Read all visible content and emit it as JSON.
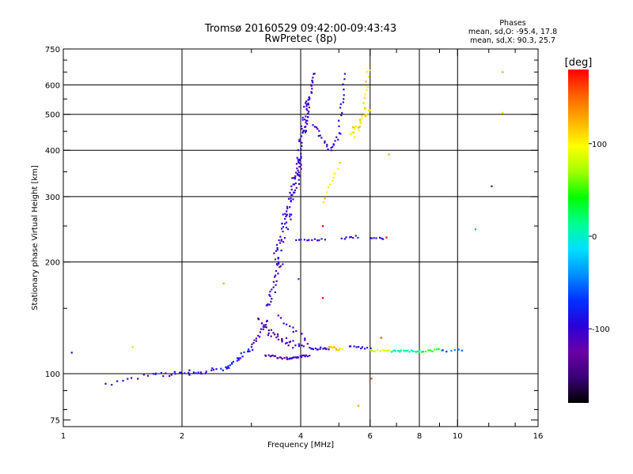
{
  "chart_data": {
    "type": "scatter",
    "title": "Tromsø 20160529 09:42:00-09:43:43",
    "subtitle": "RwPretec (8p)",
    "xlabel": "Frequency [MHz]",
    "ylabel": "Stationary phase Virtual Height [km]",
    "x_scale": "log",
    "y_scale": "log",
    "xlim": [
      1,
      16
    ],
    "ylim": [
      72,
      750
    ],
    "x_ticks": [
      1,
      2,
      4,
      6,
      8,
      10,
      16
    ],
    "x_tick_labels": [
      "1",
      "2",
      "4",
      "6",
      "8",
      "10",
      "16"
    ],
    "x_minor_ticks": [
      3,
      5,
      7,
      9,
      12,
      14
    ],
    "y_ticks": [
      75,
      100,
      200,
      300,
      400,
      500,
      600,
      750
    ],
    "y_tick_labels": [
      "75",
      "100",
      "200",
      "300",
      "400",
      "500",
      "600",
      "750"
    ],
    "y_minor_ticks": [
      80,
      90,
      150,
      250,
      350,
      450,
      550,
      650,
      700
    ],
    "grid_x": [
      2,
      4,
      6,
      8,
      10
    ],
    "grid_y": [
      100,
      200,
      300,
      400,
      500,
      600
    ],
    "grid": true,
    "legend": {
      "title": "Phases",
      "lines": [
        "mean, sd,O: -95.4, 17.8",
        "mean, sd,X:  90.3, 25.7"
      ]
    },
    "colorbar": {
      "label": "[deg]",
      "min": -180,
      "max": 180,
      "ticks": [
        100,
        0,
        -100
      ],
      "tick_labels": [
        "100",
        "0",
        "-100"
      ],
      "colormap": [
        "#000000",
        "#3a0078",
        "#6a00a8",
        "#2a00d8",
        "#0030ff",
        "#0090ff",
        "#00e0ff",
        "#00ff90",
        "#00ff00",
        "#a0ff00",
        "#ffff00",
        "#ffb000",
        "#ff6000",
        "#ff0000"
      ]
    },
    "series": [
      {
        "traces": [
          {
            "x0": 1.28,
            "x1": 1.7,
            "h0": 93,
            "h1": 100,
            "n": 10,
            "jit": 0.015,
            "phase": -100
          },
          {
            "x0": 1.7,
            "x1": 2.1,
            "h0": 99,
            "h1": 101,
            "n": 14,
            "jit": 0.018,
            "phase": -95
          },
          {
            "x0": 2.1,
            "x1": 2.6,
            "h0": 100,
            "h1": 104,
            "n": 16,
            "jit": 0.02,
            "phase": -90
          },
          {
            "x0": 2.6,
            "x1": 3.0,
            "h0": 104,
            "h1": 117,
            "n": 20,
            "jit": 0.02,
            "phase": -85
          },
          {
            "x0": 3.0,
            "x1": 3.3,
            "h0": 118,
            "h1": 140,
            "n": 16,
            "jit": 0.02,
            "phase": -110
          },
          {
            "x0": 3.3,
            "x1": 3.55,
            "h0": 150,
            "h1": 200,
            "n": 24,
            "jit": 0.03,
            "phase": -100
          },
          {
            "x0": 3.45,
            "x1": 3.75,
            "h0": 200,
            "h1": 270,
            "n": 32,
            "jit": 0.04,
            "phase": -100
          },
          {
            "x0": 3.65,
            "x1": 4.0,
            "h0": 260,
            "h1": 380,
            "n": 38,
            "jit": 0.04,
            "phase": -100
          },
          {
            "x0": 3.9,
            "x1": 4.15,
            "h0": 320,
            "h1": 560,
            "n": 48,
            "jit": 0.035,
            "phase": -100
          },
          {
            "x0": 4.1,
            "x1": 4.3,
            "h0": 450,
            "h1": 650,
            "n": 28,
            "jit": 0.02,
            "phase": -105
          },
          {
            "x0": 3.25,
            "x1": 3.7,
            "h0": 112,
            "h1": 110,
            "n": 16,
            "jit": 0.01,
            "phase": -120
          },
          {
            "x0": 3.7,
            "x1": 4.2,
            "h0": 110,
            "h1": 112,
            "n": 20,
            "jit": 0.008,
            "phase": -110
          },
          {
            "x0": 3.1,
            "x1": 3.8,
            "h0": 140,
            "h1": 118,
            "n": 18,
            "jit": 0.02,
            "phase": -130
          },
          {
            "x0": 3.3,
            "x1": 4.1,
            "h0": 128,
            "h1": 118,
            "n": 16,
            "jit": 0.02,
            "phase": -110
          },
          {
            "x0": 3.5,
            "x1": 4.2,
            "h0": 142,
            "h1": 122,
            "n": 12,
            "jit": 0.02,
            "phase": -105
          },
          {
            "x0": 4.2,
            "x1": 4.7,
            "h0": 117,
            "h1": 117,
            "n": 14,
            "jit": 0.01,
            "phase": -100
          },
          {
            "x0": 4.3,
            "x1": 4.75,
            "h0": 470,
            "h1": 400,
            "n": 14,
            "jit": 0.015,
            "phase": -95
          },
          {
            "x0": 4.7,
            "x1": 5.05,
            "h0": 400,
            "h1": 450,
            "n": 10,
            "jit": 0.02,
            "phase": -95
          },
          {
            "x0": 5.0,
            "x1": 5.2,
            "h0": 470,
            "h1": 640,
            "n": 14,
            "jit": 0.02,
            "phase": -100
          },
          {
            "x0": 3.9,
            "x1": 4.6,
            "h0": 230,
            "h1": 230,
            "n": 12,
            "jit": 0.008,
            "phase": -95
          },
          {
            "x0": 5.1,
            "x1": 5.6,
            "h0": 232,
            "h1": 234,
            "n": 8,
            "jit": 0.01,
            "phase": -90
          },
          {
            "x0": 6.0,
            "x1": 6.5,
            "h0": 233,
            "h1": 232,
            "n": 7,
            "jit": 0.01,
            "phase": -100
          },
          {
            "x0": 5.3,
            "x1": 6.0,
            "h0": 118,
            "h1": 117,
            "n": 10,
            "jit": 0.01,
            "phase": -100
          },
          {
            "x0": 4.6,
            "x1": 5.0,
            "h0": 290,
            "h1": 370,
            "n": 10,
            "jit": 0.02,
            "phase": 105
          },
          {
            "x0": 4.7,
            "x1": 5.1,
            "h0": 118,
            "h1": 116,
            "n": 14,
            "jit": 0.012,
            "phase": 110
          },
          {
            "x0": 5.4,
            "x1": 5.95,
            "h0": 440,
            "h1": 520,
            "n": 26,
            "jit": 0.03,
            "phase": 110
          },
          {
            "x0": 5.8,
            "x1": 5.95,
            "h0": 520,
            "h1": 660,
            "n": 10,
            "jit": 0.02,
            "phase": 110
          },
          {
            "x0": 6.0,
            "x1": 6.8,
            "h0": 115,
            "h1": 115,
            "n": 12,
            "jit": 0.01,
            "phase": 80
          },
          {
            "x0": 6.8,
            "x1": 8.0,
            "h0": 115,
            "h1": 115,
            "n": 20,
            "jit": 0.01,
            "phase": 0
          },
          {
            "x0": 8.0,
            "x1": 9.2,
            "h0": 115,
            "h1": 116,
            "n": 12,
            "jit": 0.01,
            "phase": 40
          },
          {
            "x0": 9.2,
            "x1": 10.3,
            "h0": 115,
            "h1": 116,
            "n": 6,
            "jit": 0.01,
            "phase": -60
          }
        ],
        "points": [
          {
            "x": 1.05,
            "y": 114,
            "phase": -100
          },
          {
            "x": 1.5,
            "y": 118,
            "phase": 110
          },
          {
            "x": 2.55,
            "y": 175,
            "phase": 130
          },
          {
            "x": 3.95,
            "y": 180,
            "phase": -60
          },
          {
            "x": 4.55,
            "y": 250,
            "phase": 180
          },
          {
            "x": 4.55,
            "y": 160,
            "phase": 180
          },
          {
            "x": 5.6,
            "y": 82,
            "phase": 130
          },
          {
            "x": 6.05,
            "y": 97,
            "phase": 160
          },
          {
            "x": 6.4,
            "y": 125,
            "phase": 160
          },
          {
            "x": 6.6,
            "y": 233,
            "phase": 180
          },
          {
            "x": 6.7,
            "y": 390,
            "phase": 130
          },
          {
            "x": 11.1,
            "y": 245,
            "phase": -30
          },
          {
            "x": 12.2,
            "y": 320,
            "phase": -140
          },
          {
            "x": 13.0,
            "y": 650,
            "phase": 130
          },
          {
            "x": 13.0,
            "y": 505,
            "phase": 110
          }
        ]
      }
    ]
  }
}
